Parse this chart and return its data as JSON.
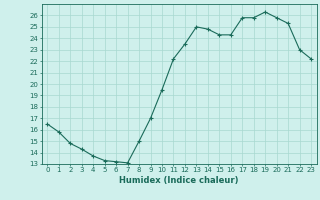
{
  "x": [
    0,
    1,
    2,
    3,
    4,
    5,
    6,
    7,
    8,
    9,
    10,
    11,
    12,
    13,
    14,
    15,
    16,
    17,
    18,
    19,
    20,
    21,
    22,
    23
  ],
  "y": [
    16.5,
    15.8,
    14.8,
    14.3,
    13.7,
    13.3,
    13.2,
    13.1,
    15.0,
    17.0,
    19.5,
    22.2,
    23.5,
    25.0,
    24.8,
    24.3,
    24.3,
    25.8,
    25.8,
    26.3,
    25.8,
    25.3,
    23.0,
    22.2
  ],
  "xlabel": "Humidex (Indice chaleur)",
  "ylim": [
    13,
    27
  ],
  "xlim": [
    -0.5,
    23.5
  ],
  "yticks": [
    13,
    14,
    15,
    16,
    17,
    18,
    19,
    20,
    21,
    22,
    23,
    24,
    25,
    26
  ],
  "xtick_labels": [
    "0",
    "1",
    "2",
    "3",
    "4",
    "5",
    "6",
    "7",
    "8",
    "9",
    "10",
    "11",
    "12",
    "13",
    "14",
    "15",
    "16",
    "17",
    "18",
    "19",
    "20",
    "21",
    "22",
    "23"
  ],
  "line_color": "#1a6b5a",
  "marker_color": "#1a6b5a",
  "bg_color": "#cff0ec",
  "grid_color": "#a8d8d0",
  "axis_color": "#1a6b5a",
  "tick_color": "#1a6b5a",
  "label_color": "#1a6b5a",
  "tick_fontsize": 5.0,
  "xlabel_fontsize": 6.0
}
